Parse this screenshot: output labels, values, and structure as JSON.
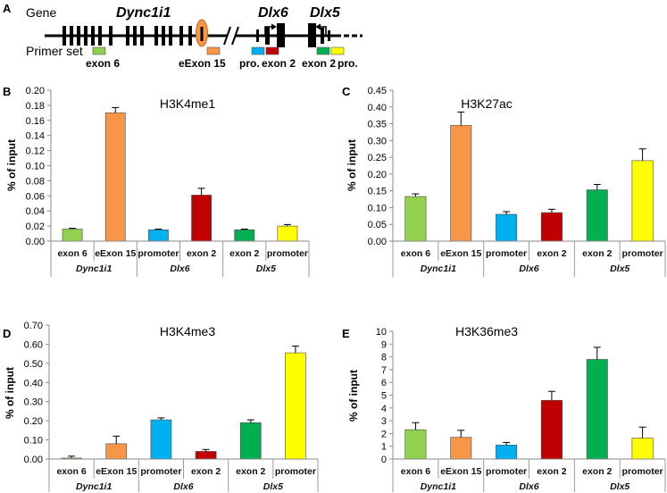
{
  "gene_diagram": {
    "panel": "A",
    "gene_label": "Gene",
    "genes": [
      "Dync1i1",
      "Dlx6",
      "Dlx5"
    ],
    "primer_label": "Primer set",
    "primers": [
      {
        "label": "exon 6",
        "color": "#92D050"
      },
      {
        "label": "eExon 15",
        "color": "#F79646"
      },
      {
        "label": "pro.",
        "color": "#00B0F0"
      },
      {
        "label": "exon 2",
        "color": "#C00000"
      },
      {
        "label": "exon 2",
        "color": "#00B050"
      },
      {
        "label": "pro.",
        "color": "#FFFF00"
      }
    ],
    "enhancer_color": "#F79646"
  },
  "chart_data": [
    {
      "panel": "B",
      "type": "bar",
      "title": "H3K4me1",
      "xlabel": "",
      "ylabel": "% of input",
      "ylim": [
        0,
        0.2
      ],
      "yticks": [
        "0.00",
        "0.02",
        "0.04",
        "0.06",
        "0.08",
        "0.10",
        "0.12",
        "0.14",
        "0.16",
        "0.18",
        "0.20"
      ],
      "categories": [
        "exon 6",
        "eExon 15",
        "promoter",
        "exon 2",
        "exon 2",
        "promoter"
      ],
      "groups": [
        {
          "label": "Dync1i1",
          "span": 2
        },
        {
          "label": "Dlx6",
          "span": 2
        },
        {
          "label": "Dlx5",
          "span": 2
        }
      ],
      "values": [
        0.016,
        0.17,
        0.015,
        0.061,
        0.015,
        0.02
      ],
      "errors": [
        0.001,
        0.007,
        0.001,
        0.009,
        0.001,
        0.002
      ],
      "colors": [
        "#92D050",
        "#F79646",
        "#00B0F0",
        "#C00000",
        "#00B050",
        "#FFFF00"
      ]
    },
    {
      "panel": "C",
      "type": "bar",
      "title": "H3K27ac",
      "xlabel": "",
      "ylabel": "% of input",
      "ylim": [
        0,
        0.45
      ],
      "yticks": [
        "0.00",
        "0.05",
        "0.10",
        "0.15",
        "0.20",
        "0.25",
        "0.30",
        "0.35",
        "0.40",
        "0.45"
      ],
      "categories": [
        "exon 6",
        "eExon 15",
        "promoter",
        "exon 2",
        "exon 2",
        "promoter"
      ],
      "groups": [
        {
          "label": "Dync1i1",
          "span": 2
        },
        {
          "label": "Dlx6",
          "span": 2
        },
        {
          "label": "Dlx5",
          "span": 2
        }
      ],
      "values": [
        0.133,
        0.345,
        0.08,
        0.085,
        0.153,
        0.24
      ],
      "errors": [
        0.008,
        0.04,
        0.008,
        0.01,
        0.016,
        0.035
      ],
      "colors": [
        "#92D050",
        "#F79646",
        "#00B0F0",
        "#C00000",
        "#00B050",
        "#FFFF00"
      ]
    },
    {
      "panel": "D",
      "type": "bar",
      "title": "H3K4me3",
      "xlabel": "",
      "ylabel": "% of input",
      "ylim": [
        0,
        0.7
      ],
      "yticks": [
        "0.00",
        "0.10",
        "0.20",
        "0.30",
        "0.40",
        "0.50",
        "0.60",
        "0.70"
      ],
      "categories": [
        "exon 6",
        "eExon 15",
        "promoter",
        "exon 2",
        "exon 2",
        "promoter"
      ],
      "groups": [
        {
          "label": "Dync1i1",
          "span": 2
        },
        {
          "label": "Dlx6",
          "span": 2
        },
        {
          "label": "Dlx5",
          "span": 2
        }
      ],
      "values": [
        0.005,
        0.08,
        0.205,
        0.04,
        0.19,
        0.555
      ],
      "errors": [
        0.01,
        0.04,
        0.01,
        0.01,
        0.015,
        0.035
      ],
      "colors": [
        "#92D050",
        "#F79646",
        "#00B0F0",
        "#C00000",
        "#00B050",
        "#FFFF00"
      ]
    },
    {
      "panel": "E",
      "type": "bar",
      "title": "H3K36me3",
      "xlabel": "",
      "ylabel": "% of input",
      "ylim": [
        0,
        10
      ],
      "yticks": [
        "0",
        "1",
        "2",
        "3",
        "4",
        "5",
        "6",
        "7",
        "8",
        "9",
        "10"
      ],
      "categories": [
        "exon 6",
        "eExon 15",
        "promoter",
        "exon 2",
        "exon 2",
        "promoter"
      ],
      "groups": [
        {
          "label": "Dync1i1",
          "span": 2
        },
        {
          "label": "Dlx6",
          "span": 2
        },
        {
          "label": "Dlx5",
          "span": 2
        }
      ],
      "values": [
        2.3,
        1.7,
        1.1,
        4.6,
        7.8,
        1.65
      ],
      "errors": [
        0.55,
        0.55,
        0.2,
        0.7,
        0.95,
        0.85
      ],
      "colors": [
        "#92D050",
        "#F79646",
        "#00B0F0",
        "#C00000",
        "#00B050",
        "#FFFF00"
      ]
    }
  ]
}
